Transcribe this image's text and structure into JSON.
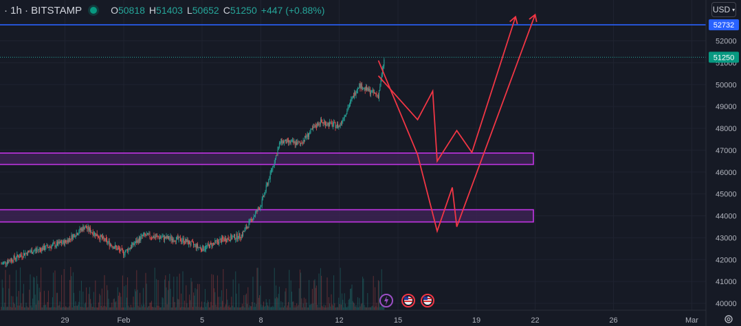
{
  "header": {
    "symbol": "· 1h · BITSTAMP",
    "open_label": "O",
    "open": "50818",
    "high_label": "H",
    "high": "51403",
    "low_label": "L",
    "low": "50652",
    "close_label": "C",
    "close": "51250",
    "change": "+447 (+0.88%)"
  },
  "currency_button": "USD",
  "price_tags": {
    "blue_line": "52732",
    "last_price": "51250"
  },
  "colors": {
    "background": "#161a25",
    "up": "#26a69a",
    "down": "#ef5350",
    "blue_line": "#2962ff",
    "zone_border": "#c335e6",
    "zone_fill": "#3b2352",
    "projection": "#f23645"
  },
  "chart_data": {
    "type": "candlestick",
    "symbol": "BITSTAMP",
    "interval": "1h",
    "y_axis": {
      "ticks": [
        40000,
        41000,
        42000,
        43000,
        44000,
        45000,
        46000,
        47000,
        48000,
        49000,
        50000,
        51000,
        52000
      ],
      "range": [
        39800,
        53400
      ],
      "side": "right"
    },
    "x_axis": {
      "ticks": [
        "29",
        "Feb",
        "5",
        "8",
        "12",
        "15",
        "19",
        "22",
        "26",
        "Mar"
      ]
    },
    "horizontal_line": {
      "price": 52732,
      "color": "#2962ff"
    },
    "last_price": 51250,
    "zones": [
      {
        "from": 46350,
        "to": 46870,
        "label": ""
      },
      {
        "from": 43720,
        "to": 44280,
        "label": ""
      }
    ],
    "price_path_approx": [
      {
        "x": "25 Jan",
        "y": 41500
      },
      {
        "x": "27 Jan",
        "y": 42300
      },
      {
        "x": "29 Jan",
        "y": 42800
      },
      {
        "x": "30 Jan",
        "y": 43500
      },
      {
        "x": "1 Feb",
        "y": 42300
      },
      {
        "x": "2 Feb",
        "y": 43100
      },
      {
        "x": "4 Feb",
        "y": 42900
      },
      {
        "x": "5 Feb",
        "y": 42500
      },
      {
        "x": "6 Feb",
        "y": 42900
      },
      {
        "x": "7 Feb",
        "y": 43100
      },
      {
        "x": "8 Feb",
        "y": 44500
      },
      {
        "x": "9 Feb",
        "y": 47400
      },
      {
        "x": "10 Feb",
        "y": 47300
      },
      {
        "x": "11 Feb",
        "y": 48300
      },
      {
        "x": "12 Feb",
        "y": 48100
      },
      {
        "x": "13 Feb",
        "y": 50000
      },
      {
        "x": "13 Feb",
        "y": 49800
      },
      {
        "x": "14 Feb",
        "y": 49500
      },
      {
        "x": "14 Feb",
        "y": 51250
      }
    ],
    "projections": [
      {
        "points": [
          {
            "x": "14 Feb",
            "y": 50400
          },
          {
            "x": "16 Feb",
            "y": 48400
          },
          {
            "x": "16 Feb",
            "y": 49700
          },
          {
            "x": "17 Feb",
            "y": 46500
          },
          {
            "x": "18 Feb",
            "y": 47900
          },
          {
            "x": "18 Feb",
            "y": 46900
          },
          {
            "x": "21 Feb",
            "y": 53100
          }
        ]
      },
      {
        "points": [
          {
            "x": "14 Feb",
            "y": 51100
          },
          {
            "x": "16 Feb",
            "y": 46800
          },
          {
            "x": "17 Feb",
            "y": 43300
          },
          {
            "x": "17 Feb",
            "y": 45300
          },
          {
            "x": "18 Feb",
            "y": 43500
          },
          {
            "x": "22 Feb",
            "y": 53200
          }
        ]
      }
    ]
  }
}
